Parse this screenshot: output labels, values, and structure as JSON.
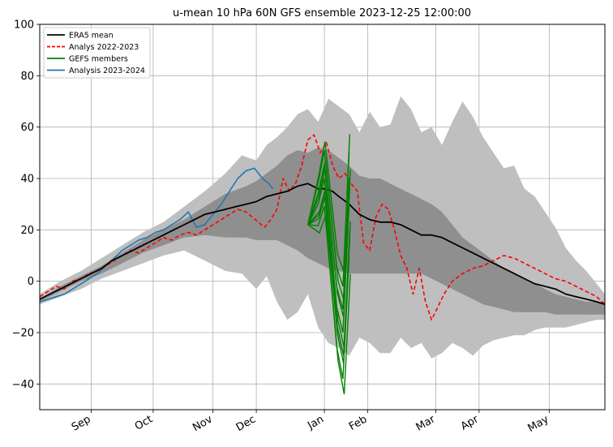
{
  "chart_data": {
    "type": "line",
    "title": "u-mean 10 hPa 60N GFS ensemble 2023-12-25 12:00:00",
    "xlabel": "",
    "ylabel": "",
    "ylim": [
      -50,
      100
    ],
    "yticks": [
      -40,
      -20,
      0,
      20,
      40,
      60,
      80,
      100
    ],
    "ytick_labels": [
      "−40",
      "−20",
      "0",
      "20",
      "40",
      "60",
      "80",
      "100"
    ],
    "xlim_days": [
      0,
      274
    ],
    "x_unit": "day of season (Aug 1 = 0)",
    "xticks": [
      {
        "label": "Sep",
        "day": 25
      },
      {
        "label": "Oct",
        "day": 55
      },
      {
        "label": "Nov",
        "day": 84
      },
      {
        "label": "Dec",
        "day": 105
      },
      {
        "label": "Jan",
        "day": 138
      },
      {
        "label": "Feb",
        "day": 159
      },
      {
        "label": "Mar",
        "day": 192
      },
      {
        "label": "Apr",
        "day": 213
      },
      {
        "label": "May",
        "day": 247
      }
    ],
    "grid": true,
    "legend_position": "top-left",
    "legend": [
      {
        "label": "ERA5 mean",
        "color": "#000000",
        "style": "solid"
      },
      {
        "label": "Analys 2022-2023",
        "color": "#ff0000",
        "style": "dashed"
      },
      {
        "label": "GEFS members",
        "color": "#008000",
        "style": "solid"
      },
      {
        "label": "Analysis 2023-2024",
        "color": "#1f77b4",
        "style": "solid"
      }
    ],
    "bands": [
      {
        "name": "outer",
        "color": "#bfbfbf",
        "x": [
          0,
          10,
          20,
          30,
          40,
          50,
          60,
          70,
          80,
          90,
          98,
          105,
          110,
          115,
          120,
          125,
          130,
          135,
          140,
          145,
          150,
          155,
          160,
          165,
          170,
          175,
          180,
          185,
          190,
          195,
          200,
          205,
          210,
          215,
          220,
          225,
          230,
          235,
          240,
          245,
          250,
          255,
          260,
          265,
          270,
          274
        ],
        "upper": [
          -5,
          0,
          4,
          9,
          14,
          19,
          23,
          29,
          35,
          42,
          49,
          47,
          53,
          56,
          60,
          65,
          67,
          62,
          71,
          68,
          65,
          58,
          66,
          60,
          61,
          72,
          67,
          58,
          60,
          53,
          62,
          70,
          64,
          56,
          50,
          44,
          45,
          36,
          33,
          27,
          21,
          13,
          8,
          4,
          -1,
          -5
        ],
        "lower": [
          -9,
          -6,
          -3,
          1,
          4,
          7,
          10,
          12,
          8,
          4,
          3,
          -3,
          2,
          -8,
          -15,
          -12,
          -5,
          -18,
          -24,
          -26,
          -29,
          -22,
          -24,
          -28,
          -28,
          -22,
          -26,
          -24,
          -30,
          -28,
          -24,
          -26,
          -29,
          -25,
          -23,
          -22,
          -21,
          -21,
          -19,
          -18,
          -18,
          -18,
          -17,
          -16,
          -15,
          -15
        ]
      },
      {
        "name": "inner",
        "color": "#8f8f8f",
        "x": [
          0,
          10,
          20,
          30,
          40,
          50,
          60,
          70,
          80,
          90,
          100,
          105,
          110,
          115,
          120,
          125,
          130,
          135,
          140,
          145,
          150,
          155,
          160,
          165,
          170,
          175,
          180,
          185,
          190,
          195,
          200,
          205,
          210,
          215,
          220,
          225,
          230,
          235,
          240,
          245,
          250,
          255,
          260,
          265,
          270,
          274
        ],
        "upper": [
          -7,
          -2,
          2,
          6,
          11,
          16,
          20,
          24,
          29,
          34,
          37,
          39,
          42,
          45,
          49,
          51,
          50,
          52,
          51,
          48,
          45,
          41,
          40,
          40,
          38,
          36,
          34,
          32,
          30,
          27,
          22,
          17,
          14,
          11,
          8,
          5,
          3,
          1,
          -1,
          -3,
          -5,
          -6,
          -7,
          -8,
          -8,
          -8
        ],
        "lower": [
          -8,
          -4,
          0,
          3,
          7,
          11,
          14,
          17,
          18,
          17,
          17,
          16,
          16,
          16,
          14,
          12,
          9,
          7,
          5,
          4,
          3,
          3,
          3,
          3,
          3,
          3,
          3,
          3,
          1,
          -1,
          -3,
          -5,
          -7,
          -9,
          -10,
          -11,
          -12,
          -12,
          -12,
          -12,
          -13,
          -13,
          -13,
          -13,
          -13,
          -13
        ]
      }
    ],
    "series": [
      {
        "name": "ERA5 mean",
        "color": "#000000",
        "style": "solid",
        "x": [
          0,
          5,
          10,
          15,
          20,
          25,
          30,
          35,
          40,
          45,
          50,
          55,
          60,
          65,
          70,
          75,
          80,
          85,
          90,
          95,
          100,
          105,
          110,
          115,
          120,
          125,
          130,
          135,
          138,
          142,
          145,
          150,
          155,
          160,
          165,
          170,
          175,
          180,
          185,
          190,
          195,
          200,
          205,
          210,
          215,
          220,
          225,
          230,
          235,
          240,
          245,
          250,
          255,
          260,
          265,
          270,
          274
        ],
        "y": [
          -7,
          -5,
          -3,
          -1,
          1,
          3,
          5,
          8,
          10,
          12,
          14,
          16,
          18,
          20,
          22,
          24,
          26,
          27,
          28,
          29,
          30,
          31,
          33,
          34,
          35,
          37,
          38,
          36,
          36,
          35,
          33,
          30,
          26,
          24,
          23,
          23,
          22,
          20,
          18,
          18,
          17,
          15,
          13,
          11,
          9,
          7,
          5,
          3,
          1,
          -1,
          -2,
          -3,
          -5,
          -6,
          -7,
          -8,
          -9
        ]
      },
      {
        "name": "Analys 2022-2023",
        "color": "#ff0000",
        "style": "dashed",
        "x": [
          0,
          4,
          8,
          12,
          16,
          20,
          24,
          28,
          32,
          36,
          40,
          44,
          48,
          52,
          56,
          60,
          64,
          68,
          72,
          76,
          80,
          84,
          88,
          92,
          96,
          100,
          103,
          106,
          109,
          112,
          115,
          118,
          121,
          124,
          127,
          130,
          133,
          136,
          139,
          142,
          145,
          148,
          151,
          154,
          157,
          160,
          163,
          166,
          169,
          172,
          175,
          178,
          181,
          184,
          187,
          190,
          193,
          196,
          200,
          205,
          210,
          215,
          220,
          225,
          230,
          235,
          240,
          245,
          250,
          255,
          260,
          265,
          270,
          274
        ],
        "y": [
          -6,
          -4,
          -2,
          -3,
          0,
          1,
          3,
          4,
          6,
          8,
          10,
          12,
          11,
          13,
          15,
          17,
          16,
          18,
          19,
          18,
          20,
          22,
          24,
          26,
          28,
          27,
          25,
          23,
          21,
          24,
          28,
          40,
          35,
          38,
          45,
          55,
          57,
          50,
          54,
          45,
          40,
          42,
          38,
          35,
          15,
          12,
          25,
          30,
          28,
          20,
          10,
          5,
          -5,
          5,
          -8,
          -15,
          -10,
          -5,
          0,
          3,
          5,
          6,
          8,
          10,
          9,
          7,
          5,
          3,
          1,
          0,
          -2,
          -4,
          -6,
          -9
        ]
      },
      {
        "name": "Analysis 2023-2024",
        "color": "#1f77b4",
        "style": "solid",
        "x": [
          0,
          4,
          8,
          12,
          16,
          20,
          24,
          28,
          32,
          36,
          40,
          44,
          48,
          52,
          56,
          60,
          64,
          68,
          72,
          76,
          80,
          84,
          88,
          92,
          96,
          100,
          104,
          108,
          111,
          113
        ],
        "y": [
          -8,
          -7,
          -6,
          -5,
          -3,
          -1,
          1,
          3,
          6,
          9,
          12,
          14,
          16,
          17,
          19,
          20,
          22,
          24,
          27,
          21,
          22,
          26,
          30,
          35,
          40,
          43,
          44,
          40,
          38,
          36
        ]
      },
      {
        "name": "GEFS members",
        "color": "#008000",
        "style": "solid",
        "x": [
          130,
          135,
          138,
          141,
          144,
          147,
          150
        ],
        "y": [
          22,
          30,
          40,
          15,
          -10,
          -20,
          30
        ]
      }
    ]
  }
}
